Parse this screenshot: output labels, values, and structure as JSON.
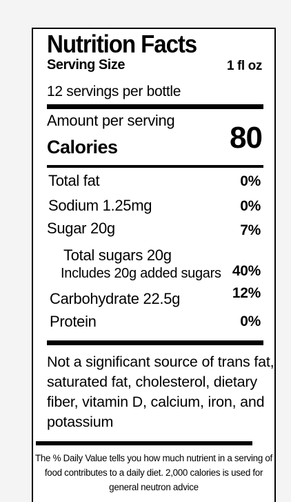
{
  "title": "Nutrition Facts",
  "serving_size_label": "Serving Size",
  "serving_size_value": "1 fl oz",
  "servings_per_container": "12 servings per bottle",
  "amount_per_serving": "Amount per serving",
  "calories_label": "Calories",
  "calories_value": "80",
  "nutrients": [
    {
      "label": "Total fat",
      "percent": "0%"
    },
    {
      "label": "Sodium 1.25mg",
      "percent": "0%"
    },
    {
      "label": "Sugar 20g",
      "percent": "7%"
    },
    {
      "label": "Total sugars 20g",
      "percent": ""
    },
    {
      "label": "Includes 20g added sugars",
      "percent": "40%"
    },
    {
      "label": "Carbohydrate 22.5g",
      "percent": "12%"
    },
    {
      "label": "Protein",
      "percent": "0%"
    }
  ],
  "note": "Not a significant source of trans fat, saturated fat, cholesterol, dietary fiber, vitamin D, calcium, iron, and potassium",
  "footnote": "The % Daily Value tells you how much nutrient in a serving of food contributes to a daily diet. 2,000 calories is used for general neutron advice"
}
